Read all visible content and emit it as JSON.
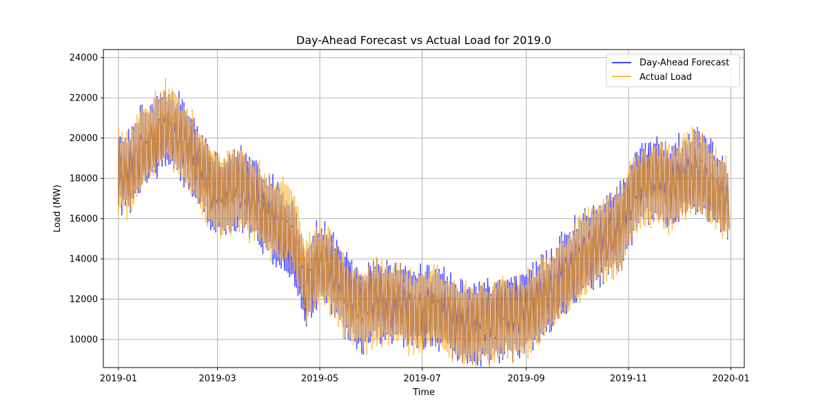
{
  "chart_data": {
    "type": "line",
    "title": "Day-Ahead Forecast vs Actual Load for 2019.0",
    "xlabel": "Time",
    "ylabel": "Load (MW)",
    "x_type": "date",
    "xlim": [
      "2018-12-23",
      "2020-01-09"
    ],
    "ylim": [
      8600,
      24400
    ],
    "grid": true,
    "legend_position": "top-right",
    "x_ticks": [
      "2019-01-01",
      "2019-03-01",
      "2019-05-01",
      "2019-07-01",
      "2019-09-01",
      "2019-11-01",
      "2020-01-01"
    ],
    "x_tick_labels": [
      "2019-01",
      "2019-03",
      "2019-05",
      "2019-07",
      "2019-09",
      "2019-11",
      "2020-01"
    ],
    "y_ticks": [
      10000,
      12000,
      14000,
      16000,
      18000,
      20000,
      22000,
      24000
    ],
    "y_tick_labels": [
      "10000",
      "12000",
      "14000",
      "16000",
      "18000",
      "20000",
      "22000",
      "24000"
    ],
    "series": [
      {
        "name": "Day-Ahead Forecast",
        "color": "#0000ff",
        "x": [
          "2019-01-01",
          "2019-01-08",
          "2019-01-15",
          "2019-01-22",
          "2019-01-29",
          "2019-02-05",
          "2019-02-12",
          "2019-02-19",
          "2019-02-26",
          "2019-03-05",
          "2019-03-12",
          "2019-03-19",
          "2019-03-26",
          "2019-04-02",
          "2019-04-09",
          "2019-04-16",
          "2019-04-23",
          "2019-04-30",
          "2019-05-07",
          "2019-05-14",
          "2019-05-21",
          "2019-05-28",
          "2019-06-04",
          "2019-06-11",
          "2019-06-18",
          "2019-06-25",
          "2019-07-02",
          "2019-07-09",
          "2019-07-16",
          "2019-07-23",
          "2019-07-30",
          "2019-08-06",
          "2019-08-13",
          "2019-08-20",
          "2019-08-27",
          "2019-09-03",
          "2019-09-10",
          "2019-09-17",
          "2019-09-24",
          "2019-10-01",
          "2019-10-08",
          "2019-10-15",
          "2019-10-22",
          "2019-10-29",
          "2019-11-05",
          "2019-11-12",
          "2019-11-19",
          "2019-11-26",
          "2019-12-03",
          "2019-12-10",
          "2019-12-17",
          "2019-12-24",
          "2019-12-31"
        ],
        "y": [
          18500,
          18200,
          19400,
          19800,
          20500,
          20100,
          19600,
          18600,
          17600,
          17200,
          17600,
          17300,
          16800,
          16000,
          15400,
          14800,
          12400,
          13800,
          13600,
          12600,
          11900,
          11600,
          12100,
          11900,
          11700,
          11400,
          11500,
          11600,
          11300,
          10900,
          10800,
          11000,
          11000,
          11300,
          11200,
          11400,
          12000,
          12500,
          13100,
          13800,
          14300,
          14800,
          15200,
          15900,
          17400,
          17900,
          18000,
          17600,
          18000,
          18300,
          18000,
          17300,
          17000
        ]
      },
      {
        "name": "Actual Load",
        "color": "#ffa500",
        "x": [
          "2019-01-01",
          "2019-01-08",
          "2019-01-15",
          "2019-01-22",
          "2019-01-29",
          "2019-02-05",
          "2019-02-12",
          "2019-02-19",
          "2019-02-26",
          "2019-03-05",
          "2019-03-12",
          "2019-03-19",
          "2019-03-26",
          "2019-04-02",
          "2019-04-09",
          "2019-04-16",
          "2019-04-23",
          "2019-04-30",
          "2019-05-07",
          "2019-05-14",
          "2019-05-21",
          "2019-05-28",
          "2019-06-04",
          "2019-06-11",
          "2019-06-18",
          "2019-06-25",
          "2019-07-02",
          "2019-07-09",
          "2019-07-16",
          "2019-07-23",
          "2019-07-30",
          "2019-08-06",
          "2019-08-13",
          "2019-08-20",
          "2019-08-27",
          "2019-09-03",
          "2019-09-10",
          "2019-09-17",
          "2019-09-24",
          "2019-10-01",
          "2019-10-08",
          "2019-10-15",
          "2019-10-22",
          "2019-10-29",
          "2019-11-05",
          "2019-11-12",
          "2019-11-19",
          "2019-11-26",
          "2019-12-03",
          "2019-12-10",
          "2019-12-17",
          "2019-12-24",
          "2019-12-31"
        ],
        "y": [
          18400,
          18100,
          19500,
          19900,
          20700,
          20200,
          19500,
          18500,
          17500,
          17300,
          17700,
          17200,
          16700,
          15900,
          15800,
          15300,
          12800,
          13700,
          13500,
          12500,
          11800,
          11500,
          12000,
          11800,
          11600,
          11300,
          11400,
          11500,
          11200,
          10800,
          10700,
          10900,
          10900,
          11200,
          11100,
          11300,
          11900,
          12400,
          13000,
          13700,
          14200,
          14700,
          15100,
          15800,
          17300,
          17800,
          17900,
          17500,
          17900,
          18200,
          17900,
          17200,
          16900
        ]
      }
    ]
  }
}
